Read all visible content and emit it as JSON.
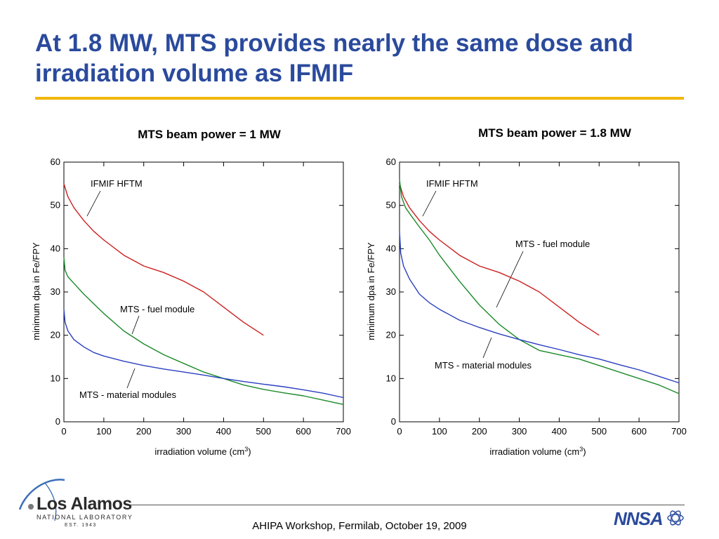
{
  "slide": {
    "title": "At 1.8 MW, MTS provides nearly the same dose and irradiation volume as IFMIF",
    "footer": "AHIPA Workshop, Fermilab, October 19, 2009",
    "logo": {
      "name": "Los Alamos",
      "subtitle": "NATIONAL LABORATORY",
      "established": "EST. 1943",
      "partner_logo": "NNSA"
    },
    "colors": {
      "title": "#2a4a9c",
      "rule": "#f2b705",
      "ifmif": "#cc1f1f",
      "fuel": "#1a8a2a",
      "material": "#2a3fbf"
    }
  },
  "chart_data": [
    {
      "type": "line",
      "title": "MTS beam power = 1 MW",
      "xlabel": "irradiation volume (cm",
      "xlabel_sup": "3",
      "xlabel_close": ")",
      "ylabel": "minimum dpa in Fe/FPY",
      "xlim": [
        0,
        700
      ],
      "ylim": [
        0,
        60
      ],
      "xticks": [
        "0",
        "100",
        "200",
        "300",
        "400",
        "500",
        "600",
        "700"
      ],
      "yticks": [
        "0",
        "10",
        "20",
        "30",
        "40",
        "50",
        "60"
      ],
      "series": [
        {
          "name": "IFMIF HFTM",
          "color": "#cc1f1f",
          "x": [
            0,
            10,
            25,
            50,
            75,
            100,
            150,
            200,
            250,
            300,
            350,
            400,
            450,
            500
          ],
          "y": [
            55,
            52,
            49.5,
            46.5,
            44,
            42,
            38.5,
            36,
            34.5,
            32.5,
            30,
            26.5,
            23,
            20
          ]
        },
        {
          "name": "MTS - fuel module",
          "color": "#1a8a2a",
          "x": [
            0,
            3,
            10,
            25,
            50,
            100,
            150,
            200,
            250,
            300,
            350,
            400,
            450,
            500,
            550,
            600,
            650,
            700
          ],
          "y": [
            38,
            35,
            33.5,
            32,
            29.5,
            25,
            21,
            18,
            15.5,
            13.5,
            11.5,
            10,
            8.5,
            7.5,
            6.7,
            6,
            5,
            4
          ]
        },
        {
          "name": "MTS - material modules",
          "color": "#2a3fbf",
          "x": [
            0,
            3,
            10,
            25,
            50,
            75,
            100,
            150,
            200,
            250,
            300,
            350,
            400,
            450,
            500,
            550,
            600,
            650,
            700
          ],
          "y": [
            26,
            23,
            21,
            19,
            17.3,
            16,
            15.2,
            14,
            13,
            12.2,
            11.5,
            10.8,
            10,
            9.3,
            8.7,
            8.1,
            7.4,
            6.6,
            5.6
          ]
        }
      ],
      "annotations": [
        "IFMIF HFTM",
        "MTS - fuel module",
        "MTS - material modules"
      ]
    },
    {
      "type": "line",
      "title": "MTS beam power = 1.8 MW",
      "xlabel": "irradiation volume (cm",
      "xlabel_sup": "3",
      "xlabel_close": ")",
      "ylabel": "minimum dpa in Fe/FPY",
      "xlim": [
        0,
        700
      ],
      "ylim": [
        0,
        60
      ],
      "xticks": [
        "0",
        "100",
        "200",
        "300",
        "400",
        "500",
        "600",
        "700"
      ],
      "yticks": [
        "0",
        "10",
        "20",
        "30",
        "40",
        "50",
        "60"
      ],
      "series": [
        {
          "name": "IFMIF HFTM",
          "color": "#cc1f1f",
          "x": [
            0,
            10,
            25,
            50,
            75,
            100,
            150,
            200,
            250,
            300,
            350,
            400,
            450,
            500
          ],
          "y": [
            55,
            52,
            49.5,
            46.5,
            44,
            42,
            38.5,
            36,
            34.5,
            32.5,
            30,
            26.5,
            23,
            20
          ]
        },
        {
          "name": "MTS - fuel module",
          "color": "#1a8a2a",
          "x": [
            0,
            5,
            15,
            30,
            50,
            75,
            100,
            150,
            200,
            250,
            300,
            350,
            400,
            450,
            500,
            550,
            600,
            650,
            700
          ],
          "y": [
            56,
            52,
            49.5,
            47.5,
            45,
            42,
            38.5,
            32.5,
            27,
            22.5,
            19,
            16.5,
            15.5,
            14.5,
            13,
            11.5,
            10,
            8.5,
            6.5
          ]
        },
        {
          "name": "MTS - material modules",
          "color": "#2a3fbf",
          "x": [
            0,
            3,
            10,
            25,
            50,
            75,
            100,
            150,
            200,
            250,
            300,
            350,
            400,
            450,
            500,
            550,
            600,
            650,
            700
          ],
          "y": [
            44,
            39,
            36,
            33,
            29.5,
            27.5,
            26,
            23.5,
            21.8,
            20.3,
            19,
            17.8,
            16.7,
            15.5,
            14.5,
            13.2,
            12,
            10.5,
            9
          ]
        }
      ],
      "annotations": [
        "IFMIF HFTM",
        "MTS - fuel module",
        "MTS - material modules"
      ]
    }
  ]
}
